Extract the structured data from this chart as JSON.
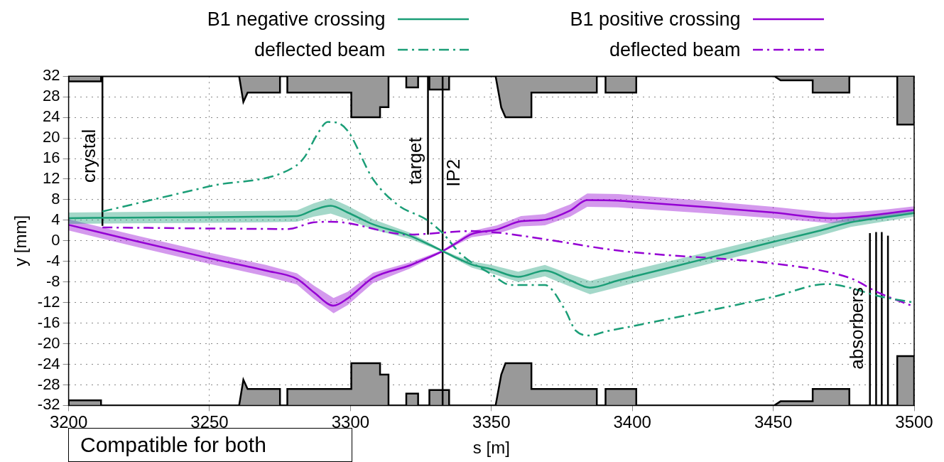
{
  "chart_data": {
    "type": "line",
    "xlabel": "s [m]",
    "ylabel": "y [mm]",
    "xlim": [
      3200,
      3500
    ],
    "xticks": [
      3200,
      3250,
      3300,
      3350,
      3400,
      3450,
      3500
    ],
    "ylim": [
      -32,
      32
    ],
    "yticks": [
      -32,
      -28,
      -24,
      -20,
      -16,
      -12,
      -8,
      -4,
      0,
      4,
      8,
      12,
      16,
      20,
      24,
      28,
      32
    ],
    "grid": true,
    "legend": "top",
    "series": [
      {
        "name": "B1 negative crossing",
        "color": "#1b9e77",
        "line_style": "solid",
        "x": [
          3200,
          3220,
          3250,
          3270,
          3281,
          3287,
          3293,
          3299,
          3308,
          3321,
          3327,
          3332.7,
          3338,
          3343,
          3350,
          3359.5,
          3369,
          3378,
          3385,
          3395,
          3400,
          3425,
          3450,
          3466,
          3477.5,
          3490,
          3500
        ],
        "values": [
          4.4,
          4.5,
          4.6,
          4.7,
          4.8,
          6.0,
          6.8,
          5.5,
          3.2,
          1.0,
          -0.5,
          -2.0,
          -3.4,
          -4.6,
          -5.5,
          -7.0,
          -5.8,
          -7.7,
          -9.1,
          -7.7,
          -7.0,
          -3.6,
          -0.2,
          1.9,
          3.6,
          4.6,
          5.4
        ],
        "lower": [
          3.3,
          3.4,
          3.5,
          3.6,
          3.7,
          4.7,
          5.3,
          4.2,
          2.2,
          0.4,
          -0.9,
          -2.2,
          -3.8,
          -5.2,
          -6.3,
          -8.0,
          -6.9,
          -8.9,
          -10.4,
          -9.0,
          -8.3,
          -4.8,
          -1.3,
          0.9,
          2.7,
          3.8,
          4.7
        ],
        "upper": [
          5.5,
          5.6,
          5.7,
          5.8,
          5.9,
          7.3,
          8.3,
          6.8,
          4.2,
          1.6,
          -0.1,
          -1.8,
          -3.0,
          -4.0,
          -4.7,
          -6.0,
          -4.7,
          -6.5,
          -7.8,
          -6.4,
          -5.7,
          -2.4,
          0.9,
          2.9,
          4.5,
          5.4,
          6.1
        ]
      },
      {
        "name": "B1 positive crossing",
        "color": "#9400d3",
        "line_style": "solid",
        "x": [
          3200,
          3225,
          3250,
          3270,
          3281,
          3287,
          3294,
          3299,
          3308,
          3321,
          3327,
          3332.7,
          3338,
          3343,
          3352,
          3360.5,
          3369,
          3378,
          3384,
          3395,
          3400,
          3425,
          3450,
          3471,
          3482,
          3490,
          3500
        ],
        "values": [
          3.1,
          -0.2,
          -3.4,
          -5.8,
          -7.4,
          -10.0,
          -12.6,
          -11.2,
          -7.2,
          -4.8,
          -3.4,
          -2.0,
          -0.3,
          1.3,
          2.2,
          3.8,
          4.1,
          5.9,
          7.9,
          7.8,
          7.6,
          6.6,
          5.5,
          4.4,
          4.8,
          5.3,
          6.0
        ],
        "lower": [
          2.0,
          -1.3,
          -4.5,
          -6.9,
          -8.5,
          -11.3,
          -14.1,
          -12.5,
          -8.2,
          -5.4,
          -3.8,
          -2.2,
          -0.7,
          0.7,
          1.4,
          2.8,
          3.0,
          4.7,
          6.6,
          6.5,
          6.3,
          5.4,
          4.4,
          3.4,
          3.9,
          4.5,
          5.3
        ],
        "upper": [
          4.2,
          0.9,
          -2.3,
          -4.7,
          -6.3,
          -8.7,
          -11.1,
          -9.9,
          -6.2,
          -4.2,
          -3.0,
          -1.8,
          0.1,
          1.9,
          3.0,
          4.8,
          5.2,
          7.1,
          9.2,
          9.1,
          8.9,
          7.8,
          6.6,
          5.4,
          5.7,
          6.1,
          6.7
        ]
      },
      {
        "name": "deflected beam",
        "color": "#1b9e77",
        "line_style": "dashed",
        "x": [
          3212,
          3250,
          3280.7,
          3284,
          3288,
          3292,
          3295,
          3299,
          3308,
          3317,
          3327,
          3332.7,
          3339,
          3350,
          3357,
          3369,
          3376,
          3380,
          3385,
          3390,
          3400,
          3450,
          3469,
          3477,
          3487,
          3500
        ],
        "values": [
          5.7,
          10.6,
          14.6,
          16.5,
          20.5,
          23.1,
          23.0,
          21.4,
          12.0,
          6.9,
          4.1,
          1.5,
          -2.5,
          -6.5,
          -8.6,
          -8.6,
          -13.3,
          -17.5,
          -18.4,
          -17.7,
          -16.6,
          -10.9,
          -8.4,
          -9.1,
          -10.7,
          -12.0
        ]
      },
      {
        "name": "deflected beam",
        "color": "#9400d3",
        "line_style": "dashed",
        "x": [
          3212,
          3250,
          3278,
          3287,
          3293,
          3297,
          3321,
          3333,
          3343,
          3352,
          3369,
          3395,
          3450,
          3469,
          3478,
          3487,
          3500
        ],
        "values": [
          2.6,
          2.4,
          2.3,
          3.6,
          3.7,
          3.6,
          1.2,
          1.6,
          1.9,
          1.6,
          0.3,
          -1.9,
          -4.4,
          -6.0,
          -7.4,
          -10.0,
          -12.8
        ]
      },
      {
        "color": "#999999",
        "type": "area",
        "x": [
          3200,
          3200,
          3211.5,
          3211.5,
          3260.5,
          3262,
          3263.5,
          3275,
          3275,
          3277.6,
          3277.6,
          3300.3,
          3300.3,
          3310.5,
          3310.5,
          3313.5,
          3313.5,
          3319.8,
          3319.8,
          3324,
          3324,
          3328,
          3328,
          3335,
          3335,
          3351.5,
          3353.5,
          3355,
          3364.2,
          3364.2,
          3387.4,
          3387.4,
          3390.5,
          3390.5,
          3401.4,
          3401.4,
          3450.4,
          3452.6,
          3464,
          3464,
          3477,
          3477,
          3494,
          3494,
          3500,
          3500
        ],
        "values": [
          32,
          31,
          31,
          32,
          32,
          27,
          28.8,
          28.8,
          32,
          32,
          28.8,
          28.8,
          24,
          24,
          26,
          26,
          32,
          32,
          29.8,
          29.8,
          32,
          32,
          29.4,
          29.4,
          32,
          32,
          25.9,
          24,
          24,
          28.8,
          28.8,
          32,
          32,
          28.8,
          28.8,
          32,
          32,
          31.2,
          31.2,
          28.8,
          28.8,
          32,
          32,
          22.6,
          22.6,
          32
        ]
      },
      {
        "color": "#999999",
        "type": "area",
        "x": [
          3200,
          3200,
          3211.5,
          3211.5,
          3260.5,
          3262,
          3263.5,
          3275,
          3275,
          3277.6,
          3277.6,
          3300.3,
          3300.3,
          3310.5,
          3310.5,
          3313.5,
          3313.5,
          3319.8,
          3319.8,
          3324,
          3324,
          3328,
          3328,
          3335,
          3335,
          3351.5,
          3353.5,
          3355,
          3364.2,
          3364.2,
          3387.4,
          3387.4,
          3390.5,
          3390.5,
          3401.4,
          3401.4,
          3450.4,
          3452.6,
          3464,
          3464,
          3477,
          3477,
          3494,
          3494,
          3500,
          3500
        ],
        "values": [
          -32,
          -31,
          -31,
          -32,
          -32,
          -27,
          -28.8,
          -28.8,
          -32,
          -32,
          -28.8,
          -28.8,
          -23.8,
          -23.8,
          -26,
          -26,
          -32,
          -32,
          -29.7,
          -29.7,
          -32,
          -32,
          -29,
          -29,
          -32,
          -32,
          -26,
          -23.8,
          -23.8,
          -28.8,
          -28.8,
          -32,
          -32,
          -28.8,
          -28.8,
          -32,
          -32,
          -31.2,
          -31.2,
          -28.8,
          -28.8,
          -32,
          -32,
          -22.4,
          -22.4,
          -32
        ]
      },
      {
        "color": "#000000",
        "line_style": "solid",
        "x": [
          3212,
          3212
        ],
        "values": [
          32,
          2.9
        ]
      },
      {
        "color": "#000000",
        "line_style": "solid",
        "x": [
          3327.5,
          3327.5
        ],
        "values": [
          32,
          1.2
        ]
      },
      {
        "color": "#000000",
        "line_style": "solid",
        "x": [
          3332.7,
          3332.7
        ],
        "values": [
          32,
          -32
        ]
      },
      {
        "color": "#000000",
        "line_style": "solid",
        "x": [
          3484.3,
          3484.3
        ],
        "values": [
          1.5,
          -32
        ]
      },
      {
        "color": "#000000",
        "line_style": "solid",
        "x": [
          3486.5,
          3486.5
        ],
        "values": [
          1.7,
          -32
        ]
      },
      {
        "color": "#000000",
        "line_style": "solid",
        "x": [
          3488.5,
          3488.5
        ],
        "values": [
          1.7,
          -32
        ]
      },
      {
        "color": "#000000",
        "line_style": "solid",
        "x": [
          3490.7,
          3490.7
        ],
        "values": [
          1.0,
          -32
        ]
      }
    ],
    "annotations": [
      {
        "text": "crystal",
        "x": 3212,
        "y": 16.5
      },
      {
        "text": "target",
        "x": 3327.5,
        "y": 15.5
      },
      {
        "text": "IP2",
        "x": 3332.7,
        "y": 13.2
      },
      {
        "text": "absorbers",
        "x": 3484.3,
        "y": -17
      },
      "Compatible for both"
    ]
  }
}
